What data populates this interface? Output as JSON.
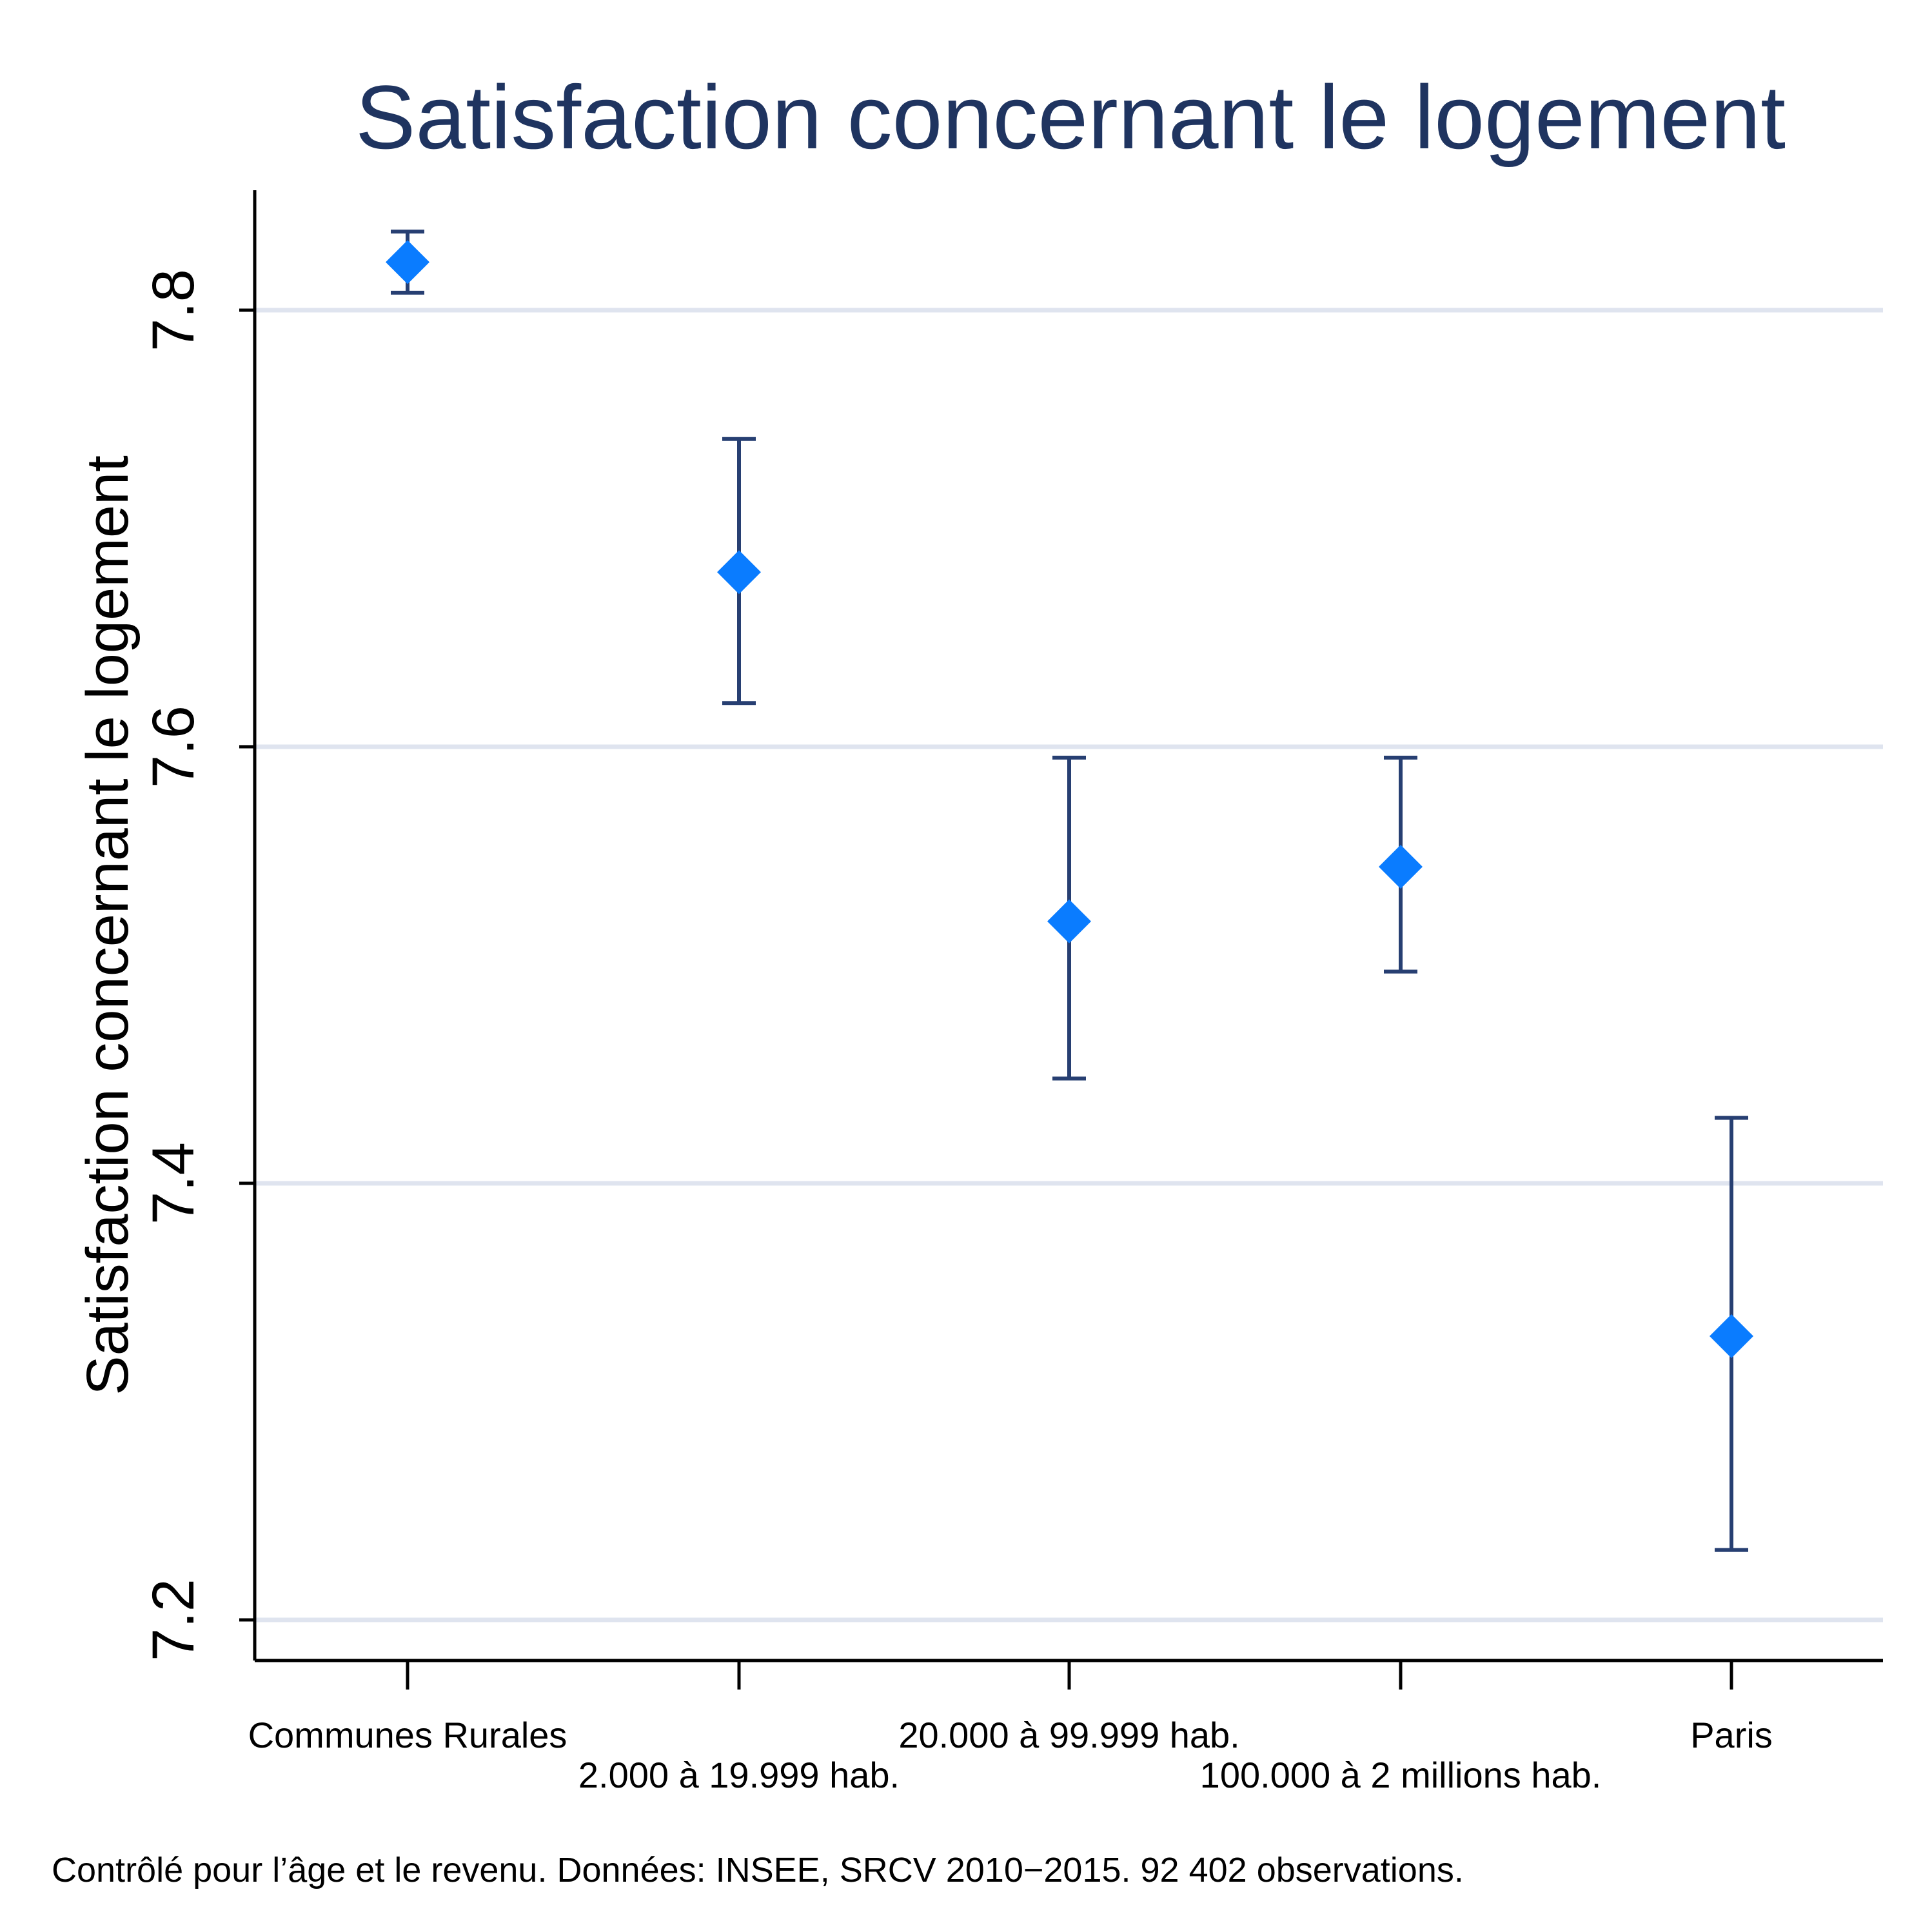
{
  "chart_data": {
    "type": "scatter",
    "title": "Satisfaction concernant le logement",
    "xlabel": "",
    "ylabel": "Satisfaction concernant le logement",
    "ylim": [
      7.18,
      7.855
    ],
    "yticks": [
      "7.2",
      "7.4",
      "7.6",
      "7.8"
    ],
    "grid": true,
    "categories": [
      "Communes Rurales",
      "2.000 à 19.999 hab.",
      "20.000 à 99.999 hab.",
      "100.000 à 2 millions hab.",
      "Paris"
    ],
    "values": [
      7.822,
      7.68,
      7.52,
      7.545,
      7.33
    ],
    "ci_low": [
      7.808,
      7.62,
      7.448,
      7.497,
      7.232
    ],
    "ci_high": [
      7.836,
      7.741,
      7.595,
      7.595,
      7.43
    ],
    "note": "Contrôlé pour l’âge et le revenu. Données: INSEE, SRCV 2010−2015. 92 402 observations.",
    "colors": {
      "marker": "#0a7cff",
      "errorbar": "#273f72",
      "grid": "#dfe4ef",
      "title": "#1f3460"
    }
  }
}
